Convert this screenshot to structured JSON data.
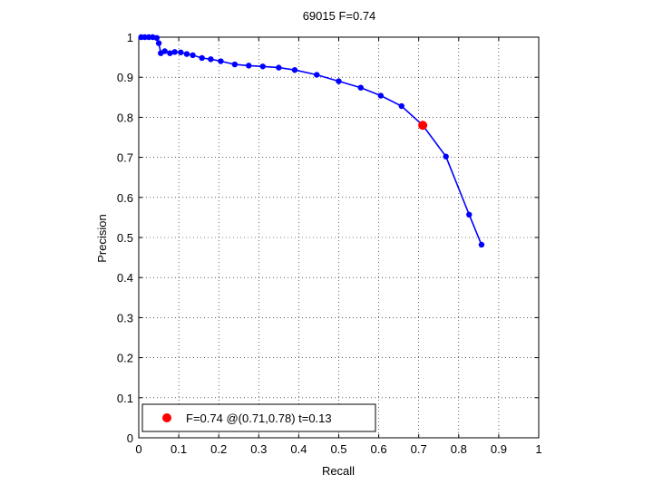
{
  "chart_data": {
    "type": "line",
    "title": "69015 F=0.74",
    "xlabel": "Recall",
    "ylabel": "Precision",
    "xlim": [
      0,
      1
    ],
    "ylim": [
      0,
      1
    ],
    "grid": true,
    "x_ticks": [
      "0",
      "0.1",
      "0.2",
      "0.3",
      "0.4",
      "0.5",
      "0.6",
      "0.7",
      "0.8",
      "0.9",
      "1"
    ],
    "y_ticks": [
      "0",
      "0.1",
      "0.2",
      "0.3",
      "0.4",
      "0.5",
      "0.6",
      "0.7",
      "0.8",
      "0.9",
      "1"
    ],
    "series": [
      {
        "color": "#0000ff",
        "points": [
          [
            0.006,
            1.0
          ],
          [
            0.015,
            1.0
          ],
          [
            0.025,
            1.0
          ],
          [
            0.035,
            1.0
          ],
          [
            0.045,
            0.998
          ],
          [
            0.05,
            0.985
          ],
          [
            0.055,
            0.96
          ],
          [
            0.065,
            0.965
          ],
          [
            0.078,
            0.96
          ],
          [
            0.09,
            0.963
          ],
          [
            0.105,
            0.962
          ],
          [
            0.12,
            0.958
          ],
          [
            0.135,
            0.955
          ],
          [
            0.158,
            0.948
          ],
          [
            0.18,
            0.945
          ],
          [
            0.205,
            0.94
          ],
          [
            0.24,
            0.932
          ],
          [
            0.275,
            0.929
          ],
          [
            0.31,
            0.927
          ],
          [
            0.35,
            0.924
          ],
          [
            0.39,
            0.918
          ],
          [
            0.445,
            0.906
          ],
          [
            0.5,
            0.89
          ],
          [
            0.555,
            0.874
          ],
          [
            0.605,
            0.854
          ],
          [
            0.657,
            0.828
          ],
          [
            0.71,
            0.78
          ],
          [
            0.768,
            0.702
          ],
          [
            0.826,
            0.557
          ],
          [
            0.857,
            0.482
          ]
        ]
      }
    ],
    "highlight": {
      "x": 0.71,
      "y": 0.78,
      "color": "#ff0000"
    },
    "legend": {
      "position": "bottom-left",
      "label": "F=0.74 @(0.71,0.78) t=0.13"
    }
  }
}
